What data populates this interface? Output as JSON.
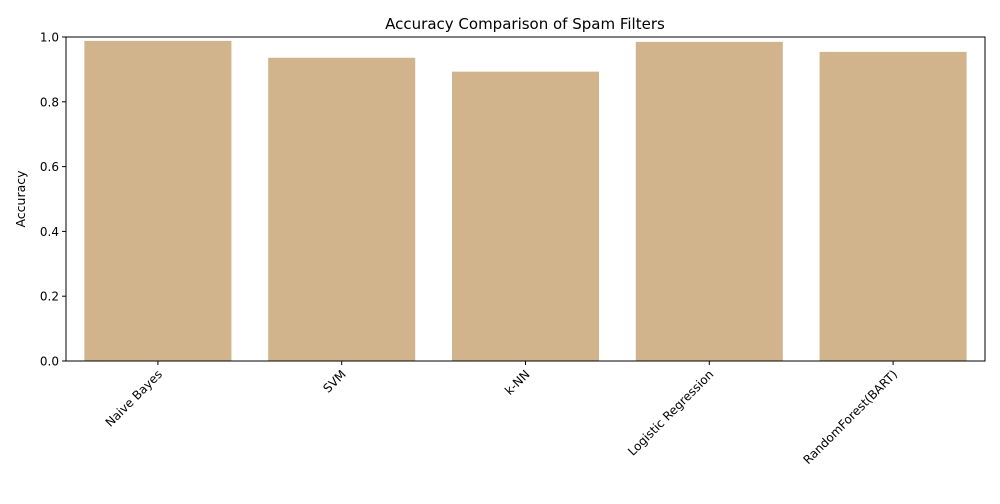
{
  "chart_data": {
    "type": "bar",
    "title": "Accuracy Comparison of Spam Filters",
    "xlabel": "",
    "ylabel": "Accuracy",
    "categories": [
      "Naive Bayes",
      "SVM",
      "k-NN",
      "Logistic Regression",
      "RandomForest(BART)"
    ],
    "values": [
      0.988,
      0.936,
      0.893,
      0.985,
      0.954
    ],
    "ylim": [
      0,
      1.0
    ],
    "yticks": [
      "0.0",
      "0.2",
      "0.4",
      "0.6",
      "0.8",
      "1.0"
    ],
    "bar_color": "#d2b48c",
    "grid": false,
    "legend": false,
    "xtick_rotation_deg": 45
  }
}
